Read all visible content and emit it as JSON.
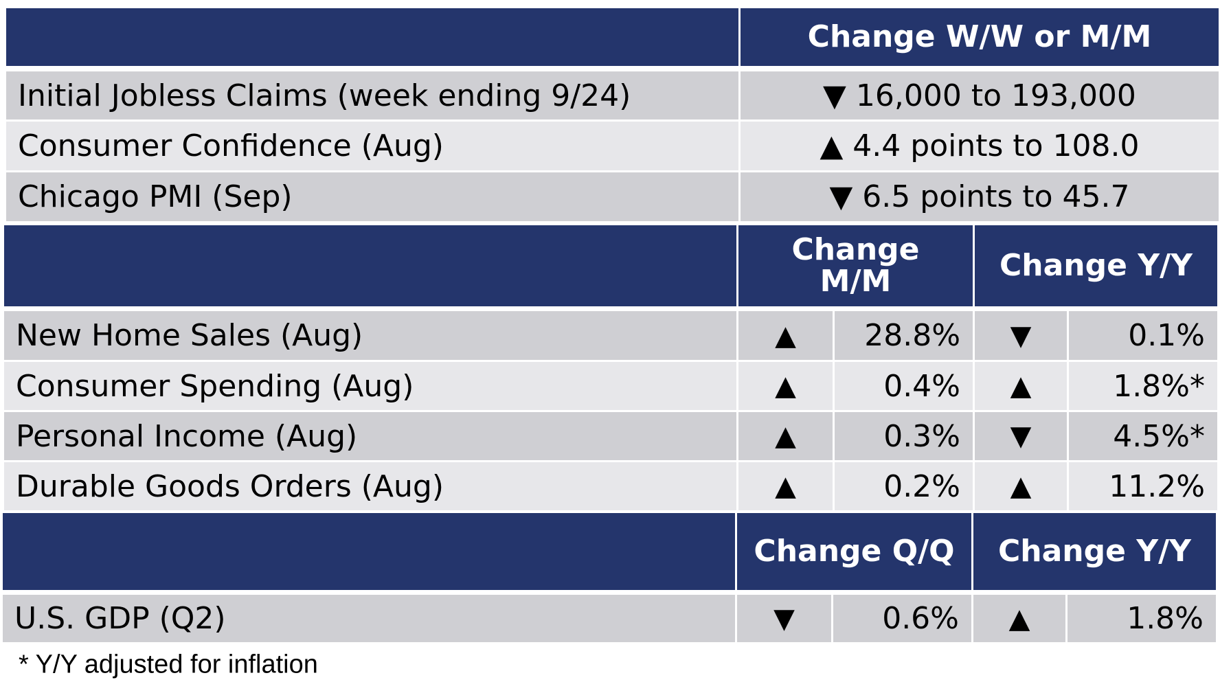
{
  "section1": {
    "header_label": "Change W/W or M/M",
    "rows": [
      {
        "label": "Initial Jobless Claims (week ending 9/24)",
        "change": "▼ 16,000 to 193,000"
      },
      {
        "label": "Consumer Confidence (Aug)",
        "change": "▲ 4.4 points to 108.0"
      },
      {
        "label": "Chicago PMI (Sep)",
        "change": "▼ 6.5 points to 45.7"
      }
    ]
  },
  "section2": {
    "header_col1": "Change M/M",
    "header_col2": "Change Y/Y",
    "rows": [
      {
        "label": "New Home Sales (Aug)",
        "dir1": "▲",
        "val1": "28.8%",
        "dir2": "▼",
        "val2": "0.1%"
      },
      {
        "label": "Consumer Spending (Aug)",
        "dir1": "▲",
        "val1": "0.4%",
        "dir2": "▲",
        "val2": "1.8%*"
      },
      {
        "label": "Personal Income (Aug)",
        "dir1": "▲",
        "val1": "0.3%",
        "dir2": "▼",
        "val2": "4.5%*"
      },
      {
        "label": "Durable Goods Orders (Aug)",
        "dir1": "▲",
        "val1": "0.2%",
        "dir2": "▲",
        "val2": "11.2%"
      }
    ]
  },
  "section3": {
    "header_col1": "Change Q/Q",
    "header_col2": "Change Y/Y",
    "rows": [
      {
        "label": "U.S. GDP (Q2)",
        "dir1": "▼",
        "val1": "0.6%",
        "dir2": "▲",
        "val2": "1.8%"
      }
    ]
  },
  "footnote": "* Y/Y adjusted for inflation",
  "colors": {
    "header_bg": "#24356c",
    "row_dark": "#cfcfd3",
    "row_light": "#e7e7ea"
  }
}
